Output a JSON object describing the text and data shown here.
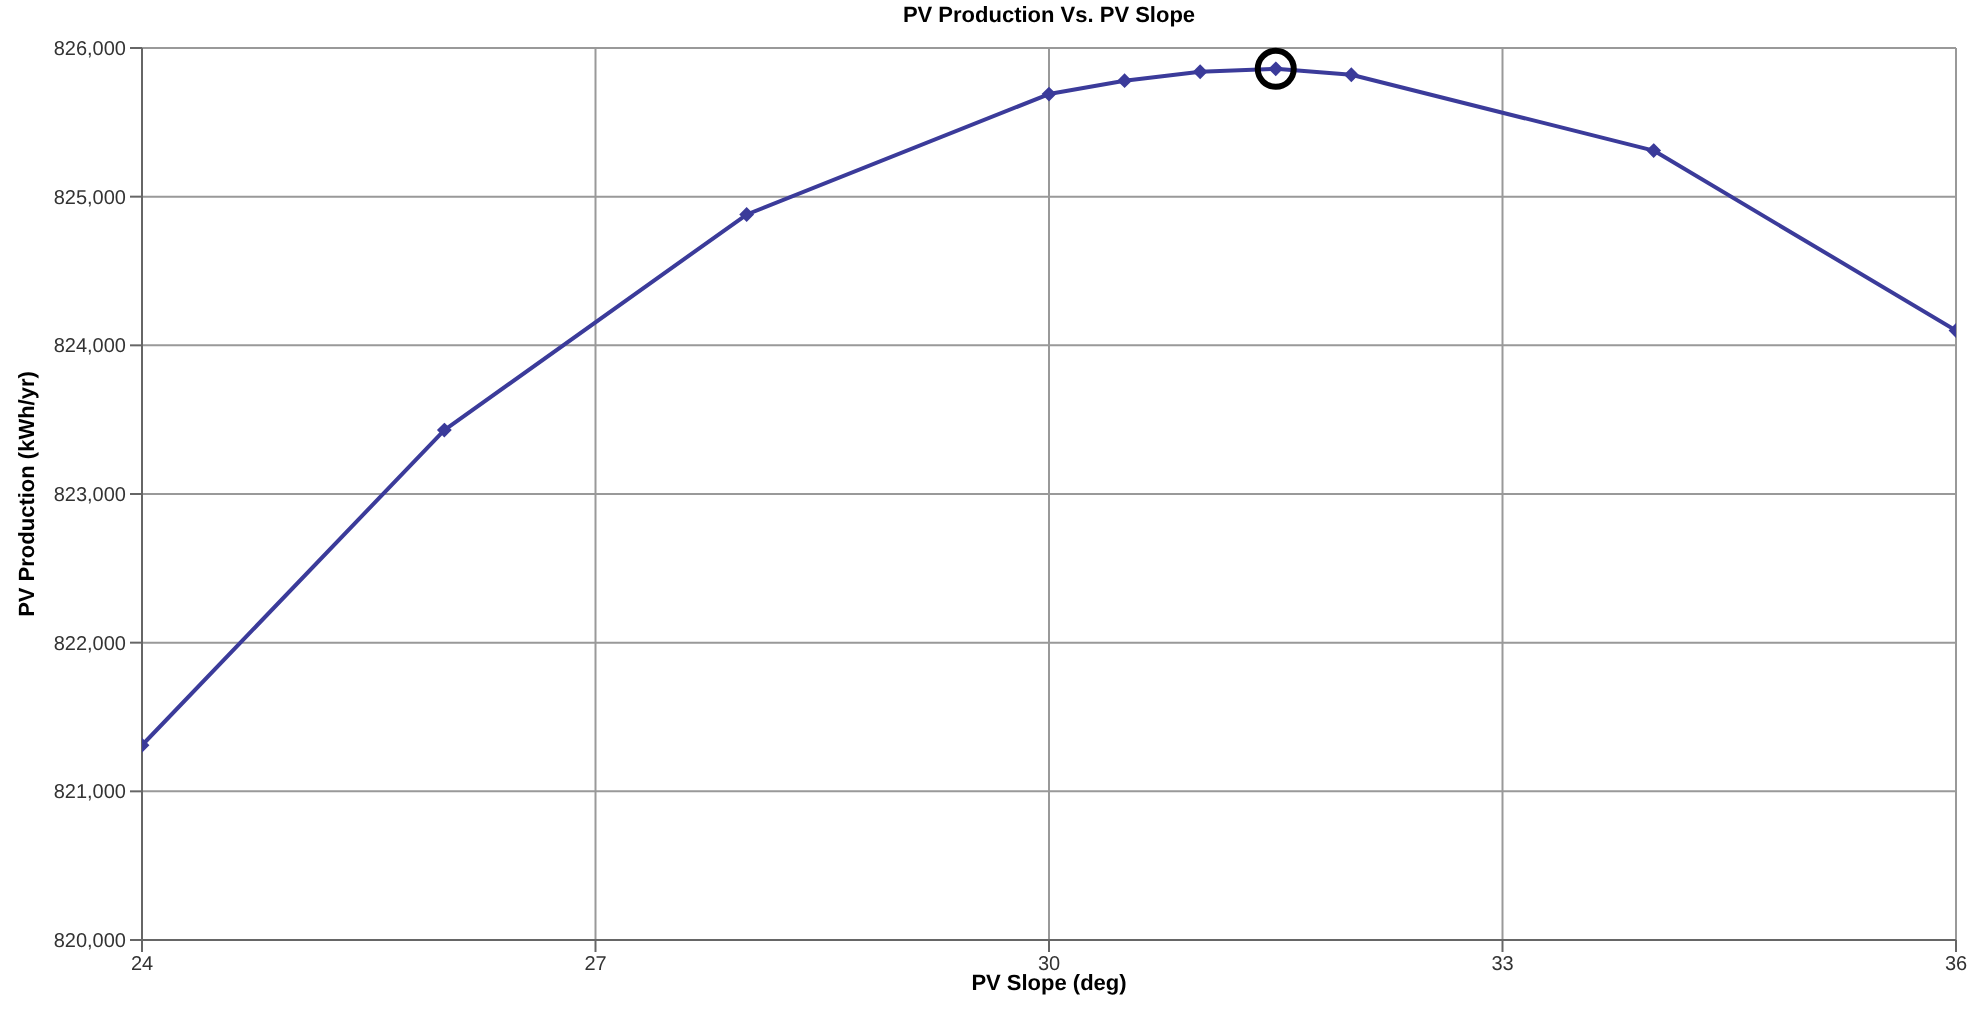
{
  "chart_data": {
    "type": "line",
    "title": "PV Production Vs. PV Slope",
    "xlabel": "PV Slope (deg)",
    "ylabel": "PV Production (kWh/yr)",
    "x": [
      24,
      26,
      28,
      30,
      30.5,
      31,
      31.5,
      32,
      34,
      36
    ],
    "series": [
      {
        "color": "#3b3b9a",
        "values": [
          821310,
          823430,
          824880,
          825690,
          825780,
          825840,
          825860,
          825820,
          825310,
          824100
        ]
      }
    ],
    "xlim": [
      24,
      36
    ],
    "xticks": [
      24,
      27,
      30,
      33,
      36
    ],
    "ylim": [
      820000,
      826000
    ],
    "yticks": [
      {
        "value": 820000,
        "label": "820,000"
      },
      {
        "value": 821000,
        "label": "821,000"
      },
      {
        "value": 822000,
        "label": "822,000"
      },
      {
        "value": 823000,
        "label": "823,000"
      },
      {
        "value": 824000,
        "label": "824,000"
      },
      {
        "value": 825000,
        "label": "825,000"
      },
      {
        "value": 826000,
        "label": "826,000"
      }
    ],
    "grid": true,
    "marker": "diamond",
    "line_style": "solid"
  }
}
